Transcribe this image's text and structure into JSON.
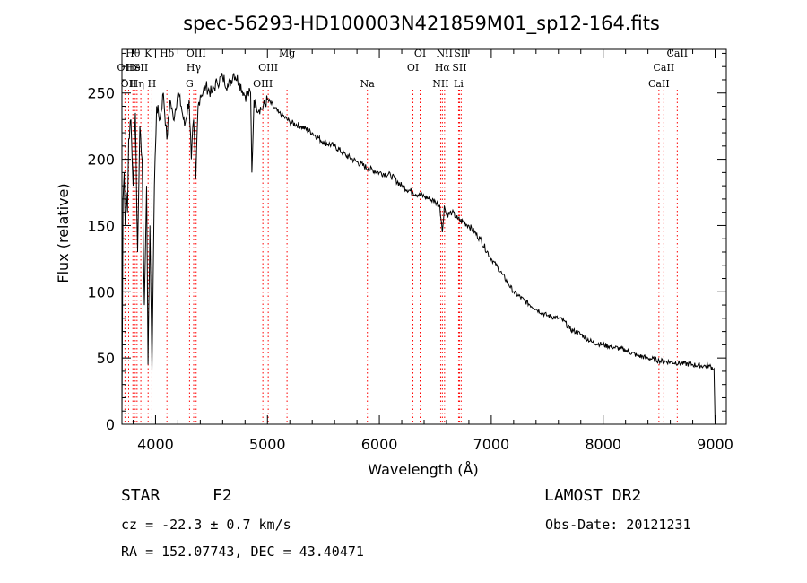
{
  "chart_data": {
    "type": "line",
    "title": "spec-56293-HD100003N421859M01_sp12-164.fits",
    "xlabel": "Wavelength (Å)",
    "ylabel": "Flux (relative)",
    "xlim": [
      3700,
      9100
    ],
    "ylim": [
      0,
      283
    ],
    "x_ticks": [
      "4000",
      "5000",
      "6000",
      "7000",
      "8000",
      "9000"
    ],
    "y_ticks": [
      "0",
      "50",
      "100",
      "150",
      "200",
      "250"
    ],
    "series": [
      {
        "x": [
          3700,
          3710,
          3720,
          3730,
          3740,
          3750,
          3760,
          3780,
          3800,
          3820,
          3840,
          3860,
          3880,
          3900,
          3920,
          3933,
          3950,
          3968,
          3990,
          4010,
          4040,
          4070,
          4101,
          4130,
          4160,
          4200,
          4230,
          4260,
          4300,
          4320,
          4340,
          4360,
          4380,
          4400,
          4450,
          4500,
          4550,
          4600,
          4650,
          4700,
          4750,
          4800,
          4850,
          4861,
          4880,
          4900,
          4950,
          5000,
          5050,
          5100,
          5150,
          5200,
          5300,
          5400,
          5500,
          5600,
          5700,
          5800,
          5900,
          6000,
          6100,
          6200,
          6300,
          6400,
          6500,
          6540,
          6563,
          6580,
          6600,
          6650,
          6700,
          6800,
          6900,
          7000,
          7100,
          7200,
          7300,
          7400,
          7500,
          7600,
          7650,
          7700,
          7800,
          7900,
          8000,
          8100,
          8200,
          8300,
          8400,
          8500,
          8600,
          8700,
          8800,
          8900,
          8950,
          8990,
          9000
        ],
        "y": [
          5,
          170,
          190,
          150,
          175,
          160,
          215,
          230,
          180,
          235,
          130,
          225,
          200,
          90,
          180,
          45,
          150,
          40,
          180,
          240,
          230,
          250,
          215,
          245,
          230,
          250,
          240,
          225,
          245,
          200,
          230,
          185,
          240,
          248,
          255,
          250,
          258,
          262,
          255,
          265,
          258,
          248,
          250,
          190,
          245,
          240,
          238,
          245,
          240,
          235,
          232,
          228,
          225,
          220,
          213,
          210,
          203,
          198,
          193,
          190,
          188,
          180,
          175,
          172,
          168,
          165,
          145,
          165,
          158,
          160,
          155,
          150,
          140,
          125,
          113,
          100,
          93,
          87,
          82,
          80,
          78,
          72,
          68,
          62,
          60,
          58,
          56,
          52,
          50,
          48,
          47,
          46,
          45,
          44,
          44,
          42,
          0
        ]
      }
    ],
    "lines": [
      {
        "x": 3727,
        "label": "OII",
        "row": 2
      },
      {
        "x": 3760,
        "label": "OII",
        "row": 3
      },
      {
        "x": 3798,
        "label": "Hθ",
        "row": 1
      },
      {
        "x": 3819,
        "label": "HeI",
        "row": 2
      },
      {
        "x": 3835,
        "label": "Hη",
        "row": 3
      },
      {
        "x": 3869,
        "label": "SII",
        "row": 2
      },
      {
        "x": 3934,
        "label": "K",
        "row": 1
      },
      {
        "x": 3968,
        "label": "H",
        "row": 3
      },
      {
        "x": 4102,
        "label": "Hδ",
        "row": 1
      },
      {
        "x": 4304,
        "label": "G",
        "row": 3
      },
      {
        "x": 4341,
        "label": "Hγ",
        "row": 2
      },
      {
        "x": 4363,
        "label": "OIII",
        "row": 1
      },
      {
        "x": 4959,
        "label": "OIII",
        "row": 3
      },
      {
        "x": 5007,
        "label": "OIII",
        "row": 2
      },
      {
        "x": 5175,
        "label": "Mg",
        "row": 1
      },
      {
        "x": 5893,
        "label": "Na",
        "row": 3
      },
      {
        "x": 6300,
        "label": "OI",
        "row": 2
      },
      {
        "x": 6364,
        "label": "OI",
        "row": 1
      },
      {
        "x": 6548,
        "label": "NII",
        "row": 3
      },
      {
        "x": 6563,
        "label": "Hα",
        "row": 2
      },
      {
        "x": 6583,
        "label": "NII",
        "row": 1
      },
      {
        "x": 6708,
        "label": "Li",
        "row": 3
      },
      {
        "x": 6716,
        "label": "SII",
        "row": 2
      },
      {
        "x": 6731,
        "label": "SII",
        "row": 1
      },
      {
        "x": 8498,
        "label": "CaII",
        "row": 3
      },
      {
        "x": 8542,
        "label": "CaII",
        "row": 2
      },
      {
        "x": 8662,
        "label": "CaII",
        "row": 1
      }
    ]
  },
  "info": {
    "class_label": "STAR",
    "subclass": "F2",
    "survey": "LAMOST DR2",
    "cz_text": "cz = -22.3 ± 0.7 km/s",
    "obs_date": "Obs-Date: 20121231",
    "coords": "RA = 152.07743, DEC =  43.40471"
  },
  "colors": {
    "spectrum": "#000000",
    "line_markers": "#ff0000",
    "axes": "#000000",
    "background": "#ffffff"
  }
}
